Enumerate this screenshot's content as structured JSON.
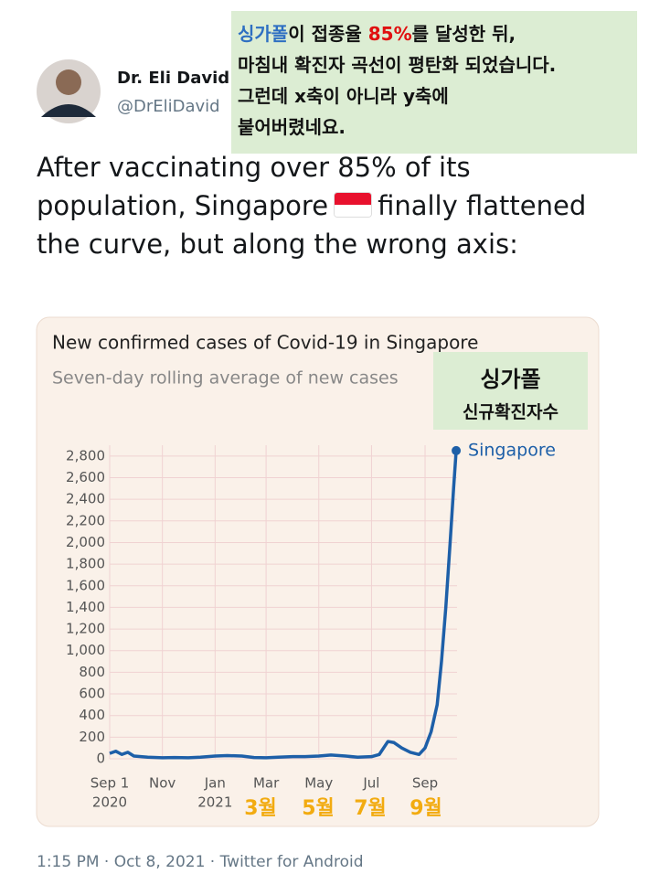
{
  "tweet": {
    "name": "Dr. Eli David",
    "handle": "@DrEliDavid",
    "text_before_flag": "After vaccinating over 85% of its population, Singapore",
    "text_after_flag": "finally flattened the curve, but along the wrong axis:",
    "footer": "1:15 PM · Oct 8, 2021 · Twitter for Android"
  },
  "annotation": {
    "line1": [
      "싱가폴",
      "이 접종율 ",
      "85%",
      "를 달성한 뒤,"
    ],
    "lines": [
      "마침내 확진자 곡선이 평탄화 되었습니다.",
      "그런데 x축이 아니라 y축에",
      "붙어버렸네요."
    ],
    "chart_label": [
      "싱가폴",
      "신규확진자수"
    ],
    "month_labels": [
      "3월",
      "5월",
      "7월",
      "9월"
    ]
  },
  "chart_data": {
    "type": "line",
    "title": "New confirmed cases of Covid-19 in Singapore",
    "subtitle": "Seven-day rolling average of new cases",
    "x": [
      "2020-09-01",
      "2020-09-08",
      "2020-09-15",
      "2020-09-22",
      "2020-09-29",
      "2020-10-15",
      "2020-11-01",
      "2020-11-15",
      "2020-12-01",
      "2020-12-15",
      "2021-01-01",
      "2021-01-15",
      "2021-02-01",
      "2021-02-15",
      "2021-03-01",
      "2021-03-15",
      "2021-04-01",
      "2021-04-15",
      "2021-05-01",
      "2021-05-15",
      "2021-06-01",
      "2021-06-15",
      "2021-07-01",
      "2021-07-10",
      "2021-07-20",
      "2021-07-27",
      "2021-08-05",
      "2021-08-15",
      "2021-08-25",
      "2021-09-01",
      "2021-09-08",
      "2021-09-15",
      "2021-09-20",
      "2021-09-25",
      "2021-09-30",
      "2021-10-04",
      "2021-10-07"
    ],
    "series": [
      {
        "name": "Singapore",
        "color": "#1d5fa8",
        "values": [
          50,
          70,
          40,
          60,
          25,
          15,
          10,
          12,
          10,
          15,
          25,
          30,
          25,
          12,
          10,
          15,
          20,
          20,
          25,
          35,
          25,
          15,
          20,
          40,
          160,
          150,
          100,
          60,
          40,
          100,
          250,
          500,
          900,
          1400,
          2000,
          2500,
          2850
        ]
      }
    ],
    "xlim": [
      "2020-09-01",
      "2021-10-08"
    ],
    "xticks": [
      {
        "value": "2020-09-01",
        "label": "Sep 1",
        "sublabel": "2020"
      },
      {
        "value": "2020-11-01",
        "label": "Nov"
      },
      {
        "value": "2021-01-01",
        "label": "Jan",
        "sublabel": "2021"
      },
      {
        "value": "2021-03-01",
        "label": "Mar"
      },
      {
        "value": "2021-05-01",
        "label": "May"
      },
      {
        "value": "2021-07-01",
        "label": "Jul"
      },
      {
        "value": "2021-09-01",
        "label": "Sep"
      }
    ],
    "ylim": [
      0,
      2900
    ],
    "yticks": [
      0,
      200,
      400,
      600,
      800,
      {
        "value": 1000,
        "label": "1,000"
      },
      {
        "value": 1200,
        "label": "1,200"
      },
      {
        "value": 1400,
        "label": "1,400"
      },
      {
        "value": 1600,
        "label": "1,600"
      },
      {
        "value": 1800,
        "label": "1,800"
      },
      {
        "value": 2000,
        "label": "2,000"
      },
      {
        "value": 2200,
        "label": "2,200"
      },
      {
        "value": 2400,
        "label": "2,400"
      },
      {
        "value": 2600,
        "label": "2,600"
      },
      {
        "value": 2800,
        "label": "2,800"
      }
    ],
    "grid": true
  }
}
